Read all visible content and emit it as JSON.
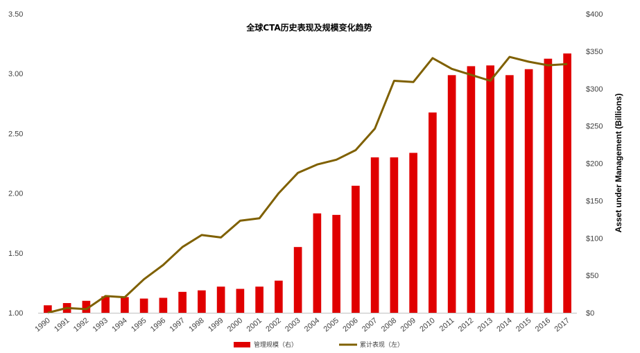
{
  "chart_data": {
    "type": "bar",
    "title": "全球CTA历史表现及规模变化趋势",
    "categories": [
      "1990",
      "1991",
      "1992",
      "1993",
      "1994",
      "1995",
      "1996",
      "1997",
      "1998",
      "1999",
      "2000",
      "2001",
      "2002",
      "2003",
      "2004",
      "2005",
      "2006",
      "2007",
      "2008",
      "2009",
      "2010",
      "2011",
      "2012",
      "2013",
      "2014",
      "2015",
      "2016",
      "2017"
    ],
    "series": [
      {
        "name": "管理规模（右）",
        "type": "bar",
        "axis": "right",
        "color": "#e00000",
        "values": [
          10,
          13,
          16,
          22,
          21,
          19,
          20,
          28,
          30,
          35,
          32,
          35,
          43,
          88,
          133,
          131,
          170,
          208,
          208,
          214,
          268,
          318,
          330,
          331,
          318,
          326,
          340,
          347
        ]
      },
      {
        "name": "累计表现（左）",
        "type": "line",
        "axis": "left",
        "color": "#7f6000",
        "values": [
          1.0,
          1.04,
          1.03,
          1.14,
          1.13,
          1.28,
          1.4,
          1.55,
          1.65,
          1.63,
          1.77,
          1.79,
          2.0,
          2.17,
          2.24,
          2.28,
          2.36,
          2.54,
          2.94,
          2.93,
          3.13,
          3.04,
          2.99,
          2.94,
          3.14,
          3.1,
          3.07,
          3.08
        ]
      }
    ],
    "y_left": {
      "ticks": [
        "1.00",
        "1.50",
        "2.00",
        "2.50",
        "3.00",
        "3.50"
      ],
      "ylim": [
        1.0,
        3.5
      ]
    },
    "y_right": {
      "label": "Asset under Management (Billions)",
      "ticks": [
        "$0",
        "$50",
        "$100",
        "$150",
        "$200",
        "$250",
        "$300",
        "$350",
        "$400"
      ],
      "ylim": [
        0,
        400
      ]
    },
    "grid": false,
    "legend_position": "bottom"
  }
}
